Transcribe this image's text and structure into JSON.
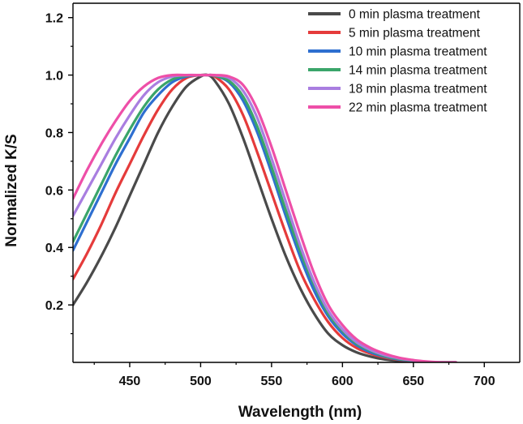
{
  "chart_data": {
    "type": "line",
    "title": "",
    "xlabel": "Wavelength (nm)",
    "ylabel": "Normalized K/S",
    "xlim": [
      410,
      725
    ],
    "ylim": [
      0.0,
      1.25
    ],
    "xticks": [
      450,
      500,
      550,
      600,
      650,
      700
    ],
    "yticks": [
      0.2,
      0.4,
      0.6,
      0.8,
      1.0,
      1.2
    ],
    "xtick_labels": [
      "450",
      "500",
      "550",
      "600",
      "650",
      "700"
    ],
    "ytick_labels": [
      "0.2",
      "0.4",
      "0.6",
      "0.8",
      "1.0",
      "1.2"
    ],
    "grid": false,
    "legend_position": "top-right",
    "series": [
      {
        "name": "0 min plasma treatment",
        "color": "#4a4a4a",
        "x": [
          410,
          420,
          430,
          440,
          450,
          460,
          470,
          480,
          490,
          500,
          505,
          510,
          520,
          530,
          540,
          550,
          560,
          570,
          580,
          590,
          600,
          610,
          620,
          630,
          640,
          650,
          660,
          670,
          680
        ],
        "y": [
          0.2,
          0.28,
          0.37,
          0.47,
          0.58,
          0.69,
          0.8,
          0.89,
          0.96,
          0.995,
          1.0,
          0.98,
          0.9,
          0.78,
          0.64,
          0.5,
          0.37,
          0.26,
          0.17,
          0.1,
          0.06,
          0.035,
          0.02,
          0.01,
          0.005,
          0.002,
          0.0,
          0.0,
          0.0
        ]
      },
      {
        "name": "5 min plasma treatment",
        "color": "#e53b3b",
        "x": [
          410,
          420,
          430,
          440,
          450,
          460,
          470,
          480,
          490,
          500,
          505,
          510,
          520,
          530,
          540,
          550,
          560,
          570,
          580,
          590,
          600,
          610,
          620,
          630,
          640,
          650,
          660,
          670,
          680
        ],
        "y": [
          0.29,
          0.38,
          0.48,
          0.59,
          0.69,
          0.79,
          0.88,
          0.95,
          0.99,
          1.0,
          1.0,
          0.995,
          0.95,
          0.86,
          0.73,
          0.59,
          0.45,
          0.32,
          0.22,
          0.14,
          0.085,
          0.05,
          0.03,
          0.017,
          0.009,
          0.004,
          0.0,
          0.0,
          0.0
        ]
      },
      {
        "name": "10 min plasma treatment",
        "color": "#2e6fd0",
        "x": [
          410,
          420,
          430,
          440,
          450,
          460,
          470,
          480,
          490,
          500,
          505,
          510,
          520,
          530,
          540,
          550,
          560,
          570,
          580,
          590,
          600,
          610,
          620,
          630,
          640,
          650,
          660,
          670,
          680
        ],
        "y": [
          0.39,
          0.49,
          0.59,
          0.69,
          0.78,
          0.87,
          0.93,
          0.975,
          0.995,
          1.0,
          1.0,
          0.998,
          0.975,
          0.91,
          0.8,
          0.66,
          0.51,
          0.37,
          0.25,
          0.16,
          0.1,
          0.06,
          0.035,
          0.02,
          0.01,
          0.005,
          0.0,
          0.0,
          0.0
        ]
      },
      {
        "name": "14 min plasma treatment",
        "color": "#3aa56a",
        "x": [
          410,
          420,
          430,
          440,
          450,
          460,
          470,
          480,
          490,
          500,
          505,
          510,
          520,
          530,
          540,
          550,
          560,
          570,
          580,
          590,
          600,
          610,
          620,
          630,
          640,
          650,
          660,
          670,
          680
        ],
        "y": [
          0.42,
          0.52,
          0.62,
          0.72,
          0.81,
          0.89,
          0.95,
          0.985,
          0.998,
          1.0,
          1.0,
          0.998,
          0.98,
          0.925,
          0.82,
          0.68,
          0.53,
          0.39,
          0.27,
          0.17,
          0.11,
          0.065,
          0.04,
          0.022,
          0.012,
          0.006,
          0.001,
          0.0,
          0.0
        ]
      },
      {
        "name": "18 min plasma treatment",
        "color": "#a97ee0",
        "x": [
          410,
          420,
          430,
          440,
          450,
          460,
          470,
          480,
          490,
          500,
          505,
          510,
          520,
          530,
          540,
          550,
          560,
          570,
          580,
          590,
          600,
          610,
          620,
          630,
          640,
          650,
          660,
          670,
          680
        ],
        "y": [
          0.51,
          0.6,
          0.69,
          0.78,
          0.86,
          0.93,
          0.975,
          0.995,
          1.0,
          1.0,
          1.0,
          0.999,
          0.99,
          0.945,
          0.85,
          0.71,
          0.56,
          0.41,
          0.28,
          0.18,
          0.115,
          0.07,
          0.043,
          0.025,
          0.014,
          0.007,
          0.002,
          0.0,
          0.0
        ]
      },
      {
        "name": "22 min plasma treatment",
        "color": "#ee4fa8",
        "x": [
          410,
          420,
          430,
          440,
          450,
          460,
          470,
          480,
          490,
          500,
          505,
          510,
          520,
          530,
          540,
          550,
          560,
          570,
          580,
          590,
          600,
          610,
          620,
          630,
          640,
          650,
          660,
          670,
          680
        ],
        "y": [
          0.57,
          0.67,
          0.76,
          0.84,
          0.91,
          0.96,
          0.99,
          1.0,
          1.0,
          1.0,
          1.0,
          1.0,
          0.995,
          0.965,
          0.88,
          0.75,
          0.6,
          0.45,
          0.31,
          0.2,
          0.13,
          0.08,
          0.05,
          0.03,
          0.016,
          0.008,
          0.003,
          0.0,
          0.0
        ]
      }
    ]
  }
}
